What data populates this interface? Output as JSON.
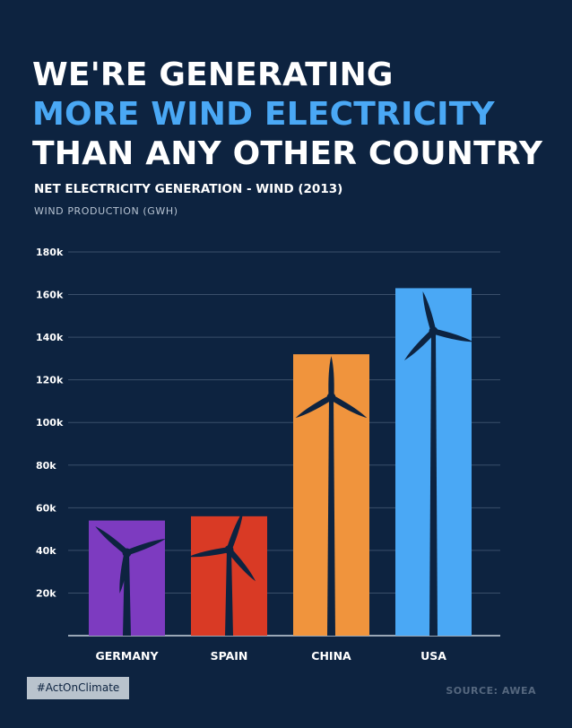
{
  "headline": {
    "line1": "WE'RE GENERATING",
    "line2": "MORE WIND ELECTRICITY",
    "line3": "THAN ANY OTHER COUNTRY"
  },
  "subtitle": "NET ELECTRICITY GENERATION - WIND (2013)",
  "hashtag": "#ActOnClimate",
  "source": "SOURCE:  AWEA",
  "colors": {
    "background": "#0d2340",
    "accent": "#4aa8f5",
    "germany": "#7d3bc0",
    "spain": "#d93a25",
    "china": "#f0943d",
    "usa": "#4aa8f5"
  },
  "chart_data": {
    "type": "bar",
    "title": "NET ELECTRICITY GENERATION - WIND (2013)",
    "xlabel": "",
    "ylabel": "WIND PRODUCTION (GWH)",
    "ylim": [
      0,
      180000
    ],
    "grid": true,
    "yticks": [
      20000,
      40000,
      60000,
      80000,
      100000,
      120000,
      140000,
      160000,
      180000
    ],
    "ytick_labels": [
      "20k",
      "40k",
      "60k",
      "80k",
      "100k",
      "120k",
      "140k",
      "160k",
      "180k"
    ],
    "categories": [
      "GERMANY",
      "SPAIN",
      "CHINA",
      "USA"
    ],
    "values": [
      54000,
      56000,
      132000,
      163000
    ],
    "bar_colors": [
      "#7d3bc0",
      "#d93a25",
      "#f0943d",
      "#4aa8f5"
    ]
  }
}
